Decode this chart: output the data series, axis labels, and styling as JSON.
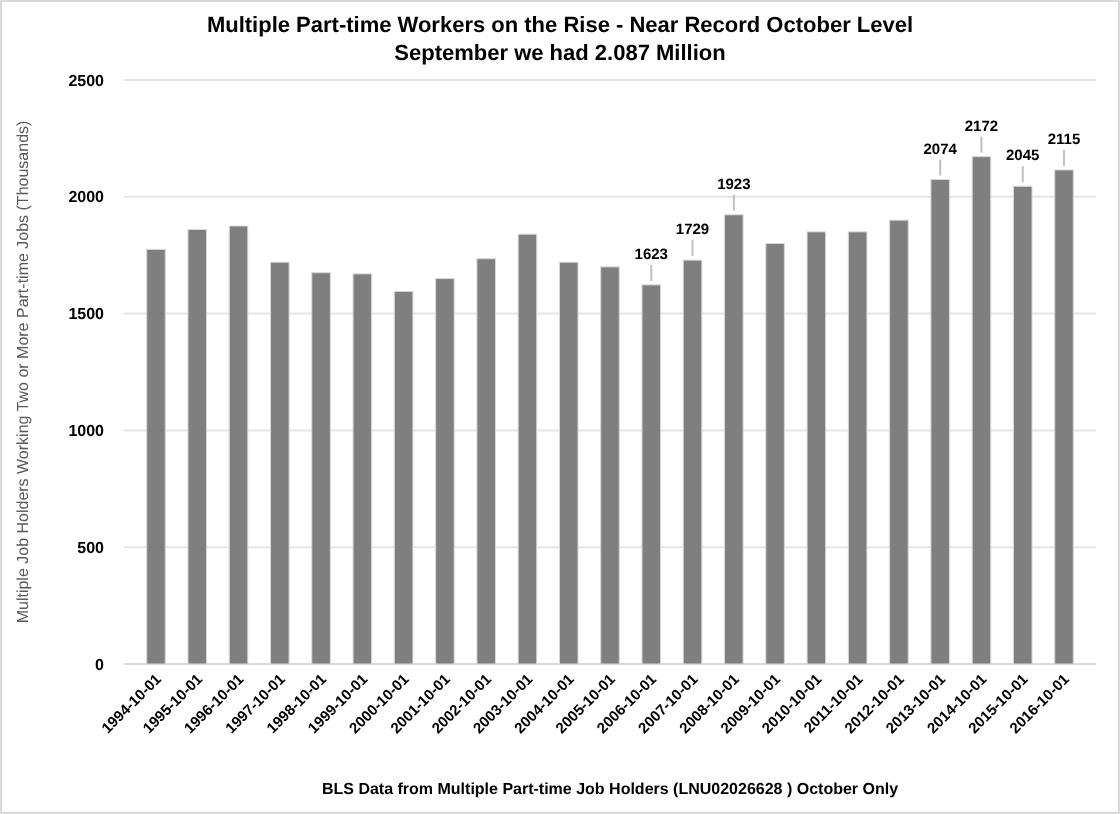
{
  "chart_data": {
    "type": "bar",
    "title": "Multiple Part-time Workers on the Rise - Near Record October Level",
    "subtitle": "September we had 2.087 Million",
    "ylabel": "Multiple Job Holders Working Two or More Part-time Jobs (Thousands)",
    "categories": [
      "1994-10-01",
      "1995-10-01",
      "1996-10-01",
      "1997-10-01",
      "1998-10-01",
      "1999-10-01",
      "2000-10-01",
      "2001-10-01",
      "2002-10-01",
      "2003-10-01",
      "2004-10-01",
      "2005-10-01",
      "2006-10-01",
      "2007-10-01",
      "2008-10-01",
      "2009-10-01",
      "2010-10-01",
      "2011-10-01",
      "2012-10-01",
      "2013-10-01",
      "2014-10-01",
      "2015-10-01",
      "2016-10-01"
    ],
    "values": [
      1775,
      1860,
      1875,
      1720,
      1675,
      1670,
      1595,
      1650,
      1735,
      1840,
      1720,
      1700,
      1623,
      1729,
      1923,
      1800,
      1850,
      1850,
      1900,
      2074,
      2172,
      2045,
      2115
    ],
    "value_labels": [
      null,
      null,
      null,
      null,
      null,
      null,
      null,
      null,
      null,
      null,
      null,
      null,
      "1623",
      "1729",
      "1923",
      null,
      null,
      null,
      null,
      "2074",
      "2172",
      "2045",
      "2115"
    ],
    "color": "#7f7f7f",
    "ylim": [
      0,
      2500
    ],
    "yticks": [
      0,
      500,
      1000,
      1500,
      2000,
      2500
    ],
    "grid": "y",
    "annotations": [
      "BLS Data from Multiple Part-time Job Holders (LNU02026628 ) October Only"
    ]
  }
}
